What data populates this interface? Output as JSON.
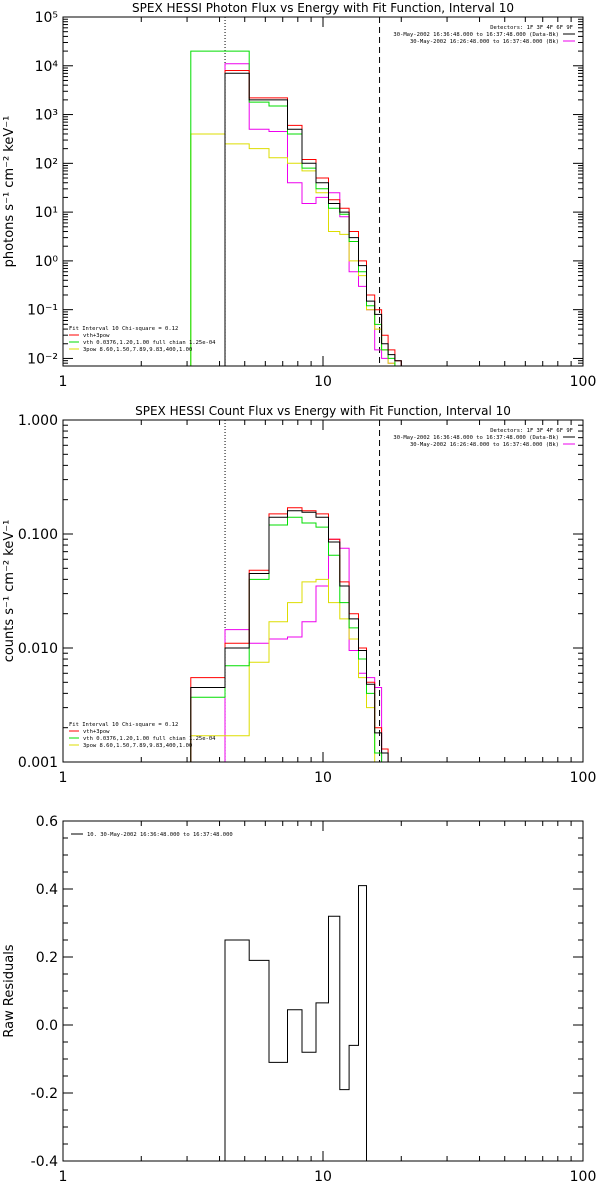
{
  "chart_data": [
    {
      "type": "line",
      "title": "SPEX HESSI Photon Flux vs Energy with Fit Function, Interval 10",
      "ylabel": "photons s⁻¹ cm⁻² keV⁻¹",
      "xlabel": "",
      "xscale": "log",
      "yscale": "log",
      "xlim": [
        1,
        100
      ],
      "ylim": [
        0.007,
        100000
      ],
      "xticks": [
        "1",
        "10",
        "100"
      ],
      "yticks": [
        "10⁻²",
        "10⁻¹",
        "10⁰",
        "10¹",
        "10²",
        "10³",
        "10⁴",
        "10⁵"
      ],
      "vlines": [
        {
          "x": 4.2,
          "style": "dotted"
        },
        {
          "x": 16.5,
          "style": "dashed"
        }
      ],
      "legend_top": [
        "Detectors: 1F 3F 4F 6F 9F",
        "30-May-2002 16:36:48.000 to 16:37:48.000 (Data-Bk)",
        "30-May-2002 16:26:48.000 to 16:37:48.000 (Bk)"
      ],
      "legend_bottom": [
        "Fit Interval 10   Chi-square = 0.12",
        "vth+3pow",
        "vth 0.0376,1.20,1.00  full chian 1.25e-04",
        "3pow 8.60,1.50,7.89,9.83,400,1.00"
      ],
      "edges": [
        3.1,
        4.2,
        5.2,
        6.2,
        7.3,
        8.3,
        9.4,
        10.5,
        11.6,
        12.6,
        13.7,
        14.7,
        15.8,
        16.8,
        17.8,
        18.9,
        20.0
      ],
      "series": [
        {
          "name": "Data-Bk",
          "color": "#000000",
          "values": [
            null,
            7000,
            2000,
            2000,
            500,
            100,
            40,
            15,
            10,
            3,
            0.8,
            0.15,
            0.08,
            0.02,
            0.012,
            0.009
          ]
        },
        {
          "name": "vth+3pow",
          "color": "#ff0000",
          "values": [
            null,
            8000,
            2200,
            2200,
            600,
            120,
            50,
            18,
            12,
            4,
            1.0,
            0.2,
            0.1,
            0.03,
            0.015,
            0.009
          ]
        },
        {
          "name": "vth",
          "color": "#00dd00",
          "values": [
            20000,
            20000,
            1800,
            1500,
            400,
            80,
            30,
            12,
            9,
            2.5,
            0.6,
            0.12,
            0.05,
            0.015,
            0.01,
            null
          ]
        },
        {
          "name": "3pow",
          "color": "#dddd00",
          "values": [
            400,
            250,
            200,
            130,
            100,
            70,
            25,
            4,
            3.5,
            1.0,
            0.5,
            0.1,
            0.04,
            0.015,
            0.008,
            null
          ]
        },
        {
          "name": "Bk",
          "color": "#ee00ee",
          "values": [
            null,
            11000,
            500,
            450,
            40,
            15,
            20,
            25,
            8,
            0.6,
            0.3,
            0.1,
            0.015,
            0.01,
            0.008,
            null
          ]
        }
      ]
    },
    {
      "type": "line",
      "title": "SPEX HESSI Count Flux vs Energy with Fit Function, Interval 10",
      "ylabel": "counts s⁻¹ cm⁻² keV⁻¹",
      "xlabel": "",
      "xscale": "log",
      "yscale": "log",
      "xlim": [
        1,
        100
      ],
      "ylim": [
        0.001,
        1.0
      ],
      "xticks": [
        "1",
        "10",
        "100"
      ],
      "yticks": [
        "0.001",
        "0.010",
        "0.100",
        "1.000"
      ],
      "vlines": [
        {
          "x": 4.2,
          "style": "dotted"
        },
        {
          "x": 16.5,
          "style": "dashed"
        }
      ],
      "legend_top": [
        "Detectors: 1F 3F 4F 6F 9F",
        "30-May-2002 16:36:48.000 to 16:37:48.000 (Data-Bk)",
        "30-May-2002 16:26:48.000 to 16:37:48.000 (Bk)"
      ],
      "legend_bottom": [
        "Fit Interval 10   Chi-square = 0.12",
        "vth+3pow",
        "vth 0.0376,1.20,1.00  full chian 1.25e-04",
        "3pow 8.60,1.50,7.89,9.83,400,1.00"
      ],
      "edges": [
        3.1,
        4.2,
        5.2,
        6.2,
        7.3,
        8.3,
        9.4,
        10.5,
        11.6,
        12.6,
        13.7,
        14.7,
        15.8,
        16.8,
        17.8,
        18.9,
        20.0
      ],
      "series": [
        {
          "name": "Data-Bk",
          "color": "#000000",
          "values": [
            0.0045,
            0.01,
            0.045,
            0.14,
            0.16,
            0.155,
            0.14,
            0.085,
            0.035,
            0.018,
            0.0095,
            0.0048,
            0.0018,
            0.0012,
            null,
            null
          ]
        },
        {
          "name": "vth+3pow",
          "color": "#ff0000",
          "values": [
            0.0055,
            0.011,
            0.048,
            0.15,
            0.17,
            0.16,
            0.15,
            0.09,
            0.038,
            0.02,
            0.01,
            0.005,
            0.002,
            0.0013,
            null,
            null
          ]
        },
        {
          "name": "vth",
          "color": "#00dd00",
          "values": [
            0.0037,
            0.007,
            0.04,
            0.12,
            0.14,
            0.125,
            0.115,
            0.065,
            0.025,
            0.015,
            0.008,
            0.004,
            0.0012,
            null,
            null,
            null
          ]
        },
        {
          "name": "3pow",
          "color": "#dddd00",
          "values": [
            0.0017,
            0.0017,
            0.0075,
            0.017,
            0.025,
            0.038,
            0.04,
            0.025,
            0.018,
            0.012,
            0.0055,
            0.003,
            null,
            null,
            null,
            null
          ]
        },
        {
          "name": "Bk",
          "color": "#ee00ee",
          "values": [
            null,
            0.0145,
            0.011,
            0.012,
            0.0125,
            0.017,
            0.035,
            0.09,
            0.075,
            0.0095,
            0.006,
            0.0055,
            0.0045,
            null,
            null,
            null
          ]
        }
      ]
    },
    {
      "type": "line",
      "title": "",
      "ylabel": "Raw Residuals",
      "xlabel": "",
      "xscale": "log",
      "yscale": "linear",
      "xlim": [
        1,
        100
      ],
      "ylim": [
        -0.4,
        0.6
      ],
      "xticks": [
        "1",
        "10",
        "100"
      ],
      "yticks": [
        "-0.4",
        "-0.2",
        "0.0",
        "0.2",
        "0.4",
        "0.6"
      ],
      "legend": [
        "10. 30-May-2002 16:36:48.000 to 16:37:48.000"
      ],
      "edges": [
        4.2,
        5.2,
        6.2,
        7.3,
        8.3,
        9.4,
        10.5,
        11.6,
        12.6,
        13.7,
        14.7
      ],
      "series": [
        {
          "name": "",
          "color": "#000000",
          "values": [
            0.25,
            0.19,
            -0.11,
            0.045,
            -0.08,
            0.065,
            0.32,
            -0.19,
            -0.06,
            0.41
          ]
        }
      ]
    }
  ]
}
